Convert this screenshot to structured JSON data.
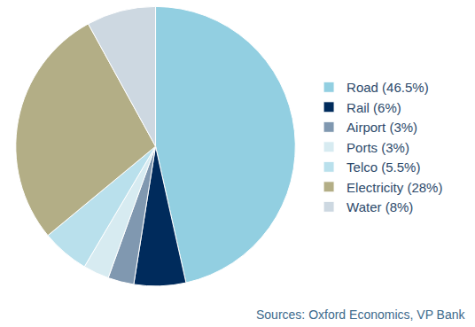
{
  "chart_data": {
    "type": "pie",
    "categories": [
      "Road (46.5%)",
      "Rail (6%)",
      "Airport (3%)",
      "Ports (3%)",
      "Telco (5.5%)",
      "Electricity (28%)",
      "Water (8%)"
    ],
    "values": [
      46.5,
      6,
      3,
      3,
      5.5,
      28,
      8
    ],
    "colors": [
      "#92cfe1",
      "#002b5c",
      "#8098b0",
      "#d7ebf1",
      "#b9e0ec",
      "#b3ae86",
      "#cdd8e1"
    ],
    "legend": "right",
    "data_labels": false,
    "annotations": [
      "Sources: Oxford Economics, VP Bank"
    ]
  }
}
